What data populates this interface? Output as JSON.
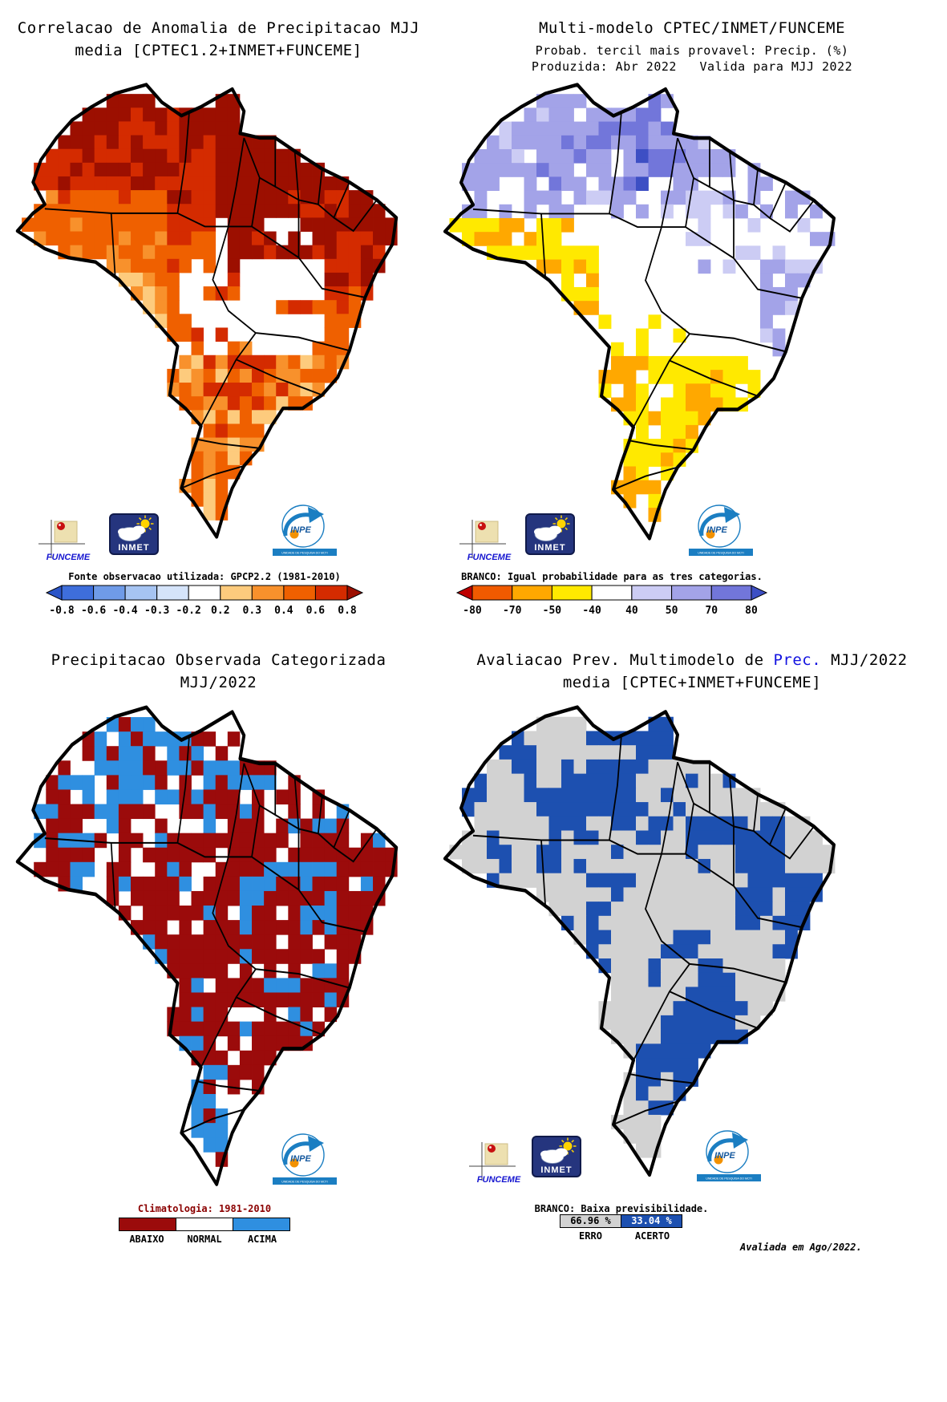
{
  "page": {
    "background": "#FFFFFF"
  },
  "panels": {
    "p1": {
      "title1": "Correlacao de Anomalia de Precipitacao MJJ",
      "title2": "media [CPTEC1.2+INMET+FUNCEME]",
      "colorbar": {
        "label": "Fonte observacao utilizada: GPCP2.2 (1981-2010)",
        "ticks": [
          "-0.8",
          "-0.6",
          "-0.4",
          "-0.3",
          "-0.2",
          "0.2",
          "0.3",
          "0.4",
          "0.6",
          "0.8"
        ],
        "arrow_left": "#2B55C8",
        "arrow_right": "#9C0F00",
        "segments": [
          "#3E6EDB",
          "#6F9BE8",
          "#A6C4F2",
          "#D5E4FA",
          "#FFFFFF",
          "#FDCB7D",
          "#F8912C",
          "#EF6000",
          "#D42B00"
        ]
      },
      "logos": [
        "funceme",
        "inmet",
        "inpe"
      ]
    },
    "p2": {
      "title1": "Multi-modelo CPTEC/INMET/FUNCEME",
      "title2": "Probab. tercil mais provavel: Precip. (%)",
      "title3": "Produzida: Abr 2022   Valida para MJJ 2022",
      "colorbar": {
        "label": "BRANCO: Igual probabilidade para as tres categorias.",
        "ticks": [
          "-80",
          "-70",
          "-50",
          "-40",
          "40",
          "50",
          "70",
          "80"
        ],
        "arrow_left": "#BE0000",
        "arrow_right": "#3D4FC4",
        "segments": [
          "#F05A00",
          "#FFA800",
          "#FFE900",
          "#FFFFFF",
          "#CCCCF4",
          "#A3A3E8",
          "#7276DA"
        ]
      },
      "logos": [
        "funceme",
        "inmet",
        "inpe"
      ]
    },
    "p3": {
      "title1": "Precipitacao Observada Categorizada",
      "title2": "MJJ/2022",
      "legend": {
        "note": "Climatologia: 1981-2010",
        "items": [
          {
            "label": "ABAIXO",
            "color": "#9B0B0B"
          },
          {
            "label": "NORMAL",
            "color": "#FFFFFF"
          },
          {
            "label": "ACIMA",
            "color": "#2F8FE0"
          }
        ]
      },
      "logos": [
        "inpe"
      ]
    },
    "p4": {
      "title1_parts": [
        {
          "text": "Avaliacao Prev. Multimodelo de "
        },
        {
          "text": "Prec.",
          "color": "#1212E0"
        },
        {
          "text": " MJJ/2022"
        }
      ],
      "title2": "media [CPTEC+INMET+FUNCEME]",
      "note": "BRANCO: Baixa previsibilidade.",
      "stats": [
        {
          "label": "ERRO",
          "value": "66.96 %",
          "color": "#D2D2D2",
          "text": "#000000"
        },
        {
          "label": "ACERTO",
          "value": "33.04 %",
          "color": "#1D50B0",
          "text": "#FFFFFF"
        }
      ],
      "footnote": "Avaliada em Ago/2022.",
      "logos": [
        "funceme",
        "inmet",
        "inpe"
      ]
    }
  },
  "logos": {
    "funceme": {
      "label": "FUNCEME"
    },
    "inmet": {
      "label": "INMET"
    },
    "inpe": {
      "label": "INPE",
      "sub": "UNIDADE DE PESQUISA DO MCTI"
    }
  },
  "map_colors": {
    "p1": {
      "bins": [
        0.2,
        0.3,
        0.4,
        0.6,
        0.8
      ],
      "colors": [
        "#FFFFFF",
        "#FDCB7D",
        "#F8912C",
        "#EF6000",
        "#D42B00",
        "#9C0F00"
      ]
    },
    "p2": {
      "pos": [
        "#CCCCF4",
        "#A3A3E8",
        "#7276DA",
        "#3D4FC4"
      ],
      "neg": [
        "#FFE900",
        "#FFA800",
        "#F05A00",
        "#BE0000"
      ],
      "white": "#FFFFFF"
    },
    "p3": {
      "below": "#9B0B0B",
      "normal": "#FFFFFF",
      "above": "#2F8FE0"
    },
    "p4": {
      "erro": "#D2D2D2",
      "acerto": "#1D50B0"
    }
  },
  "chart_data": [
    {
      "type": "heatmap",
      "title": "Correlacao de Anomalia de Precipitacao MJJ media [CPTEC1.2+INMET+FUNCEME]",
      "region": "Brazil",
      "colorbar_ticks": [
        -0.8,
        -0.6,
        -0.4,
        -0.3,
        -0.2,
        0.2,
        0.3,
        0.4,
        0.6,
        0.8
      ],
      "source_note": "Fonte observacao utilizada: GPCP2.2 (1981-2010)",
      "summary": "Correlation 0.6-0.8+ (red/dark red) along the north and northeast; 0.3-0.6 (orange) over the west, center-west and south; near zero (white) pocket over central-east Brazil and the far southern tip."
    },
    {
      "type": "heatmap",
      "title": "Multi-modelo CPTEC/INMET/FUNCEME - Probab. tercil mais provavel: Precip. (%)",
      "produced": "Abr 2022",
      "valid_for": "MJJ 2022",
      "colorbar_ticks": [
        -80,
        -70,
        -50,
        -40,
        40,
        50,
        70,
        80
      ],
      "note": "BRANCO: Igual probabilidade para as tres categorias.",
      "summary": "Above-normal tercile probability 40-80% (lavender/blue) across the northern Amazon and parts of the east coast; below-normal 40-60% (yellow/orange) over the south/southeast and a west-central patch; white (equal probability) elsewhere."
    },
    {
      "type": "categorical-map",
      "title": "Precipitacao Observada Categorizada MJJ/2022",
      "climatology": "1981-2010",
      "categories": [
        "ABAIXO",
        "NORMAL",
        "ACIMA"
      ],
      "category_colors": [
        "#9B0B0B",
        "#FFFFFF",
        "#2F8FE0"
      ],
      "summary": "Below-normal (dark red) dominates central, eastern and southern interior Brazil; above-normal (blue) patches over the far north, eastern Amazon and a southern coastal cluster; normal (white) scattered through the Amazon and south."
    },
    {
      "type": "categorical-map",
      "title": "Avaliacao Prev. Multimodelo de Prec. MJJ/2022 media [CPTEC+INMET+FUNCEME]",
      "note": "BRANCO: Baixa previsibilidade.",
      "values": {
        "ERRO": 66.96,
        "ACERTO": 33.04
      },
      "value_unit": "%",
      "category_colors": {
        "ERRO": "#D2D2D2",
        "ACERTO": "#1D50B0"
      },
      "evaluated": "Avaliada em Ago/2022."
    }
  ]
}
